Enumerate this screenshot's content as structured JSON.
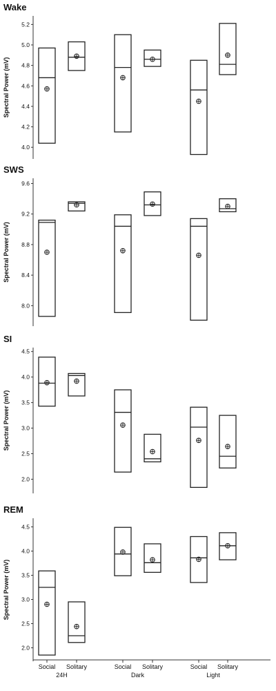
{
  "chart_data": [
    {
      "type": "box",
      "title": "Wake",
      "ylabel": "Spectral Power (mV)",
      "ylim": [
        3.9,
        5.27
      ],
      "yticks": [
        4.0,
        4.2,
        4.4,
        4.6,
        4.8,
        5.0,
        5.2
      ],
      "tick_labels": [
        "4.0",
        "4.2",
        "4.4",
        "4.6",
        "4.8",
        "5.0",
        "5.2"
      ],
      "boxes": [
        {
          "group": "24H",
          "condition": "Social",
          "low": 4.04,
          "high": 4.97,
          "median": 4.68,
          "mean": 4.57
        },
        {
          "group": "24H",
          "condition": "Solitary",
          "low": 4.75,
          "high": 5.03,
          "median": 4.88,
          "mean": 4.89
        },
        {
          "group": "Dark",
          "condition": "Social",
          "low": 4.15,
          "high": 5.1,
          "median": 4.78,
          "mean": 4.68
        },
        {
          "group": "Dark",
          "condition": "Solitary",
          "low": 4.79,
          "high": 4.95,
          "median": 4.86,
          "mean": 4.86
        },
        {
          "group": "Light",
          "condition": "Social",
          "low": 3.93,
          "high": 4.85,
          "median": 4.56,
          "mean": 4.45
        },
        {
          "group": "Light",
          "condition": "Solitary",
          "low": 4.71,
          "high": 5.21,
          "median": 4.81,
          "mean": 4.9
        }
      ]
    },
    {
      "type": "box",
      "title": "SWS",
      "ylabel": "Spectral Power (mV)",
      "ylim": [
        7.75,
        9.65
      ],
      "yticks": [
        8.0,
        8.4,
        8.8,
        9.2,
        9.6
      ],
      "tick_labels": [
        "8.0",
        "8.4",
        "8.8",
        "9.2",
        "9.6"
      ],
      "boxes": [
        {
          "group": "24H",
          "condition": "Social",
          "low": 7.86,
          "high": 9.12,
          "median": 9.09,
          "mean": 8.7
        },
        {
          "group": "24H",
          "condition": "Solitary",
          "low": 9.24,
          "high": 9.36,
          "median": 9.34,
          "mean": 9.32
        },
        {
          "group": "Dark",
          "condition": "Social",
          "low": 7.91,
          "high": 9.19,
          "median": 9.04,
          "mean": 8.72
        },
        {
          "group": "Dark",
          "condition": "Solitary",
          "low": 9.18,
          "high": 9.49,
          "median": 9.32,
          "mean": 9.33
        },
        {
          "group": "Light",
          "condition": "Social",
          "low": 7.81,
          "high": 9.14,
          "median": 9.04,
          "mean": 8.66
        },
        {
          "group": "Light",
          "condition": "Solitary",
          "low": 9.23,
          "high": 9.4,
          "median": 9.27,
          "mean": 9.3
        }
      ]
    },
    {
      "type": "box",
      "title": "SI",
      "ylabel": "Spectral Power (mV)",
      "ylim": [
        1.75,
        4.55
      ],
      "yticks": [
        2.0,
        2.5,
        3.0,
        3.5,
        4.0,
        4.5
      ],
      "tick_labels": [
        "2.0",
        "2.5",
        "3.0",
        "3.5",
        "4.0",
        "4.5"
      ],
      "boxes": [
        {
          "group": "24H",
          "condition": "Social",
          "low": 3.43,
          "high": 4.39,
          "median": 3.88,
          "mean": 3.89
        },
        {
          "group": "24H",
          "condition": "Solitary",
          "low": 3.63,
          "high": 4.07,
          "median": 4.03,
          "mean": 3.92
        },
        {
          "group": "Dark",
          "condition": "Social",
          "low": 2.14,
          "high": 3.75,
          "median": 3.31,
          "mean": 3.06
        },
        {
          "group": "Dark",
          "condition": "Solitary",
          "low": 2.34,
          "high": 2.88,
          "median": 2.4,
          "mean": 2.54
        },
        {
          "group": "Light",
          "condition": "Social",
          "low": 1.84,
          "high": 3.41,
          "median": 3.02,
          "mean": 2.76
        },
        {
          "group": "Light",
          "condition": "Solitary",
          "low": 2.22,
          "high": 3.25,
          "median": 2.45,
          "mean": 2.64
        }
      ]
    },
    {
      "type": "box",
      "title": "REM",
      "ylabel": "Spectral Power (mV)",
      "ylim": [
        1.75,
        4.65
      ],
      "yticks": [
        2.0,
        2.5,
        3.0,
        3.5,
        4.0,
        4.5
      ],
      "tick_labels": [
        "2.0",
        "2.5",
        "3.0",
        "3.5",
        "4.0",
        "4.5"
      ],
      "boxes": [
        {
          "group": "24H",
          "condition": "Social",
          "low": 1.85,
          "high": 3.59,
          "median": 3.25,
          "mean": 2.9
        },
        {
          "group": "24H",
          "condition": "Solitary",
          "low": 2.11,
          "high": 2.95,
          "median": 2.25,
          "mean": 2.44
        },
        {
          "group": "Dark",
          "condition": "Social",
          "low": 3.49,
          "high": 4.49,
          "median": 3.94,
          "mean": 3.98
        },
        {
          "group": "Dark",
          "condition": "Solitary",
          "low": 3.56,
          "high": 4.15,
          "median": 3.76,
          "mean": 3.82
        },
        {
          "group": "Light",
          "condition": "Social",
          "low": 3.35,
          "high": 4.3,
          "median": 3.86,
          "mean": 3.83
        },
        {
          "group": "Light",
          "condition": "Solitary",
          "low": 3.82,
          "high": 4.38,
          "median": 4.11,
          "mean": 4.11
        }
      ]
    }
  ],
  "x_axis": {
    "categories": [
      "Social",
      "Solitary",
      "Social",
      "Solitary",
      "Social",
      "Solitary"
    ],
    "groups": [
      "24H",
      "Dark",
      "Light"
    ]
  }
}
